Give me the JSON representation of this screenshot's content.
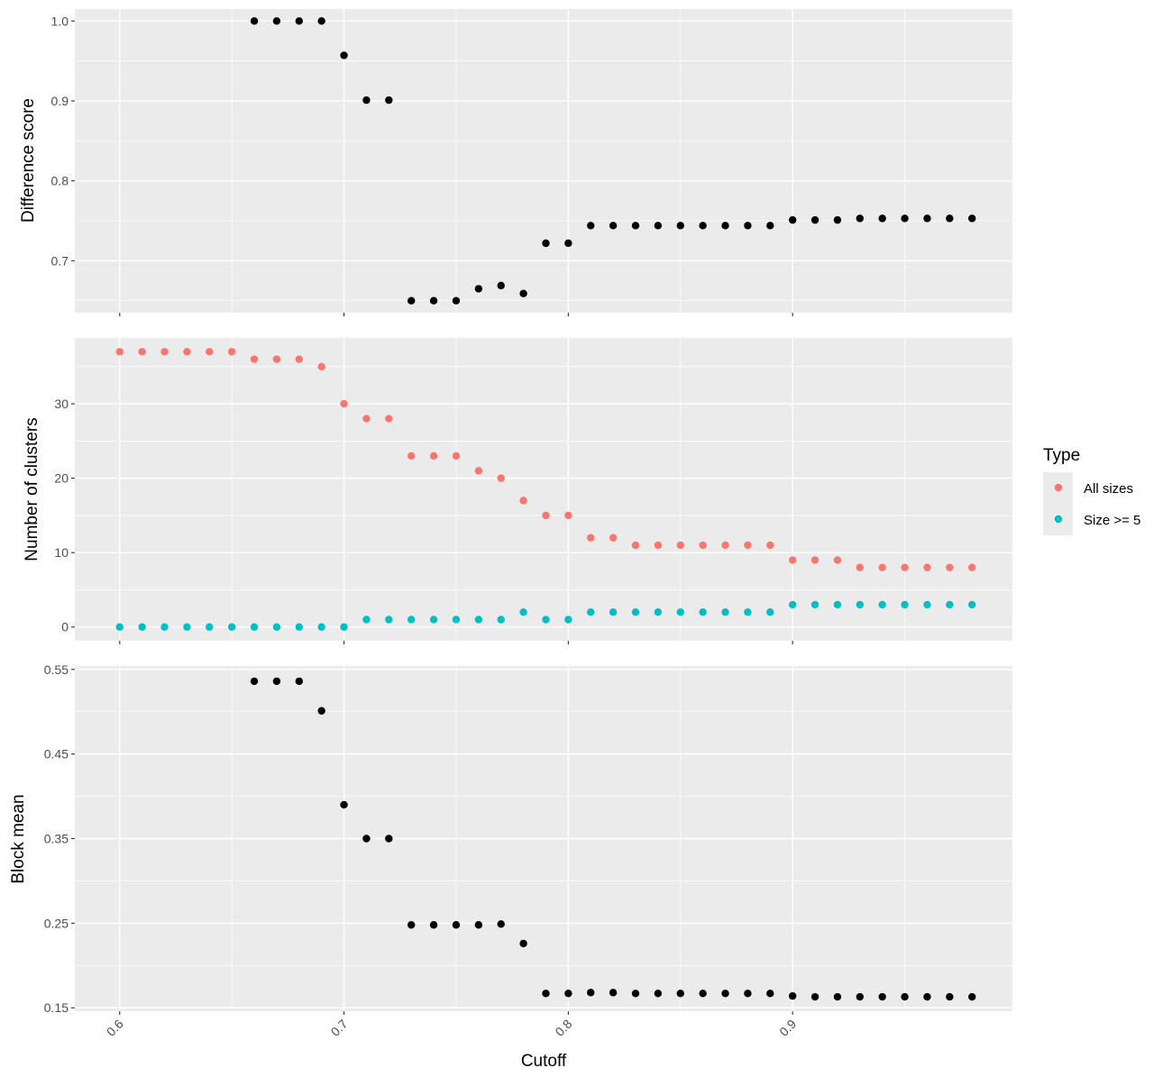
{
  "colors": {
    "panel_bg": "#EBEBEB",
    "grid": "#FFFFFF",
    "tick": "#333333",
    "point_default": "#000000",
    "all_sizes": "#F8766D",
    "size_ge_5": "#00BFC4"
  },
  "chart_data": [
    {
      "type": "scatter",
      "ylabel": "Difference score",
      "xlim": [
        0.58,
        0.998
      ],
      "ylim": [
        0.635,
        1.015
      ],
      "y_ticks": [
        0.7,
        0.8,
        0.9,
        1.0
      ],
      "y_tick_labels": [
        "0.7",
        "0.8",
        "0.9",
        "1.0"
      ],
      "x_ticks": [
        0.6,
        0.7,
        0.8,
        0.9
      ],
      "grid": true,
      "series": [
        {
          "color": "#000000",
          "x": [
            0.66,
            0.67,
            0.68,
            0.69,
            0.7,
            0.71,
            0.72,
            0.73,
            0.74,
            0.75,
            0.76,
            0.77,
            0.78,
            0.79,
            0.8,
            0.81,
            0.82,
            0.83,
            0.84,
            0.85,
            0.86,
            0.87,
            0.88,
            0.89,
            0.9,
            0.91,
            0.92,
            0.93,
            0.94,
            0.95,
            0.96,
            0.97,
            0.98
          ],
          "y": [
            1.0,
            1.0,
            1.0,
            1.0,
            0.957,
            0.901,
            0.901,
            0.65,
            0.65,
            0.65,
            0.665,
            0.669,
            0.659,
            0.722,
            0.722,
            0.744,
            0.744,
            0.744,
            0.744,
            0.744,
            0.744,
            0.744,
            0.744,
            0.744,
            0.751,
            0.751,
            0.751,
            0.753,
            0.753,
            0.753,
            0.753,
            0.753,
            0.753
          ]
        }
      ]
    },
    {
      "type": "scatter",
      "ylabel": "Number of clusters",
      "xlim": [
        0.58,
        0.998
      ],
      "ylim": [
        -1.85,
        38.85
      ],
      "y_ticks": [
        0,
        10,
        20,
        30
      ],
      "y_tick_labels": [
        "0",
        "10",
        "20",
        "30"
      ],
      "x_ticks": [
        0.6,
        0.7,
        0.8,
        0.9
      ],
      "grid": true,
      "legend": {
        "title": "Type",
        "placement": "right",
        "entries": [
          {
            "label": "All sizes",
            "color": "#F8766D"
          },
          {
            "label": "Size >= 5",
            "color": "#00BFC4"
          }
        ]
      },
      "series": [
        {
          "name": "All sizes",
          "color": "#F8766D",
          "x": [
            0.6,
            0.61,
            0.62,
            0.63,
            0.64,
            0.65,
            0.66,
            0.67,
            0.68,
            0.69,
            0.7,
            0.71,
            0.72,
            0.73,
            0.74,
            0.75,
            0.76,
            0.77,
            0.78,
            0.79,
            0.8,
            0.81,
            0.82,
            0.83,
            0.84,
            0.85,
            0.86,
            0.87,
            0.88,
            0.89,
            0.9,
            0.91,
            0.92,
            0.93,
            0.94,
            0.95,
            0.96,
            0.97,
            0.98
          ],
          "y": [
            37,
            37,
            37,
            37,
            37,
            37,
            36,
            36,
            36,
            35,
            30,
            28,
            28,
            23,
            23,
            23,
            21,
            20,
            17,
            15,
            15,
            12,
            12,
            11,
            11,
            11,
            11,
            11,
            11,
            11,
            9,
            9,
            9,
            8,
            8,
            8,
            8,
            8,
            8
          ]
        },
        {
          "name": "Size >= 5",
          "color": "#00BFC4",
          "x": [
            0.6,
            0.61,
            0.62,
            0.63,
            0.64,
            0.65,
            0.66,
            0.67,
            0.68,
            0.69,
            0.7,
            0.71,
            0.72,
            0.73,
            0.74,
            0.75,
            0.76,
            0.77,
            0.78,
            0.79,
            0.8,
            0.81,
            0.82,
            0.83,
            0.84,
            0.85,
            0.86,
            0.87,
            0.88,
            0.89,
            0.9,
            0.91,
            0.92,
            0.93,
            0.94,
            0.95,
            0.96,
            0.97,
            0.98
          ],
          "y": [
            0,
            0,
            0,
            0,
            0,
            0,
            0,
            0,
            0,
            0,
            0,
            1,
            1,
            1,
            1,
            1,
            1,
            1,
            2,
            1,
            1,
            2,
            2,
            2,
            2,
            2,
            2,
            2,
            2,
            2,
            3,
            3,
            3,
            3,
            3,
            3,
            3,
            3,
            3
          ]
        }
      ]
    },
    {
      "type": "scatter",
      "ylabel": "Block mean",
      "xlabel": "Cutoff",
      "xlim": [
        0.58,
        0.998
      ],
      "ylim": [
        0.146,
        0.554
      ],
      "y_ticks": [
        0.15,
        0.25,
        0.35,
        0.45,
        0.55
      ],
      "y_tick_labels": [
        "0.15",
        "0.25",
        "0.35",
        "0.45",
        "0.55"
      ],
      "x_ticks": [
        0.6,
        0.7,
        0.8,
        0.9
      ],
      "x_tick_labels": [
        "0.6",
        "0.7",
        "0.8",
        "0.9"
      ],
      "grid": true,
      "series": [
        {
          "color": "#000000",
          "x": [
            0.66,
            0.67,
            0.68,
            0.69,
            0.7,
            0.71,
            0.72,
            0.73,
            0.74,
            0.75,
            0.76,
            0.77,
            0.78,
            0.79,
            0.8,
            0.81,
            0.82,
            0.83,
            0.84,
            0.85,
            0.86,
            0.87,
            0.88,
            0.89,
            0.9,
            0.91,
            0.92,
            0.93,
            0.94,
            0.95,
            0.96,
            0.97,
            0.98
          ],
          "y": [
            0.536,
            0.536,
            0.536,
            0.501,
            0.39,
            0.35,
            0.35,
            0.248,
            0.248,
            0.248,
            0.248,
            0.249,
            0.226,
            0.167,
            0.167,
            0.168,
            0.168,
            0.167,
            0.167,
            0.167,
            0.167,
            0.167,
            0.167,
            0.167,
            0.164,
            0.163,
            0.163,
            0.163,
            0.163,
            0.163,
            0.163,
            0.163,
            0.163
          ]
        }
      ]
    }
  ]
}
